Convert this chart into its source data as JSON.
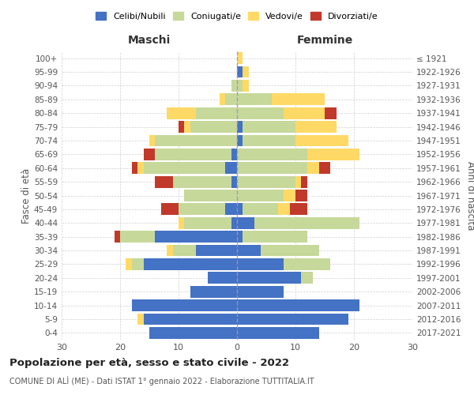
{
  "age_groups": [
    "0-4",
    "5-9",
    "10-14",
    "15-19",
    "20-24",
    "25-29",
    "30-34",
    "35-39",
    "40-44",
    "45-49",
    "50-54",
    "55-59",
    "60-64",
    "65-69",
    "70-74",
    "75-79",
    "80-84",
    "85-89",
    "90-94",
    "95-99",
    "100+"
  ],
  "birth_years": [
    "2017-2021",
    "2012-2016",
    "2007-2011",
    "2002-2006",
    "1997-2001",
    "1992-1996",
    "1987-1991",
    "1982-1986",
    "1977-1981",
    "1972-1976",
    "1967-1971",
    "1962-1966",
    "1957-1961",
    "1952-1956",
    "1947-1951",
    "1942-1946",
    "1937-1941",
    "1932-1936",
    "1927-1931",
    "1922-1926",
    "≤ 1921"
  ],
  "male": {
    "celibi": [
      15,
      16,
      18,
      8,
      5,
      16,
      7,
      14,
      1,
      2,
      0,
      1,
      2,
      1,
      0,
      0,
      0,
      0,
      0,
      0,
      0
    ],
    "coniugati": [
      0,
      0,
      0,
      0,
      0,
      2,
      4,
      6,
      8,
      8,
      9,
      10,
      14,
      13,
      14,
      8,
      7,
      2,
      1,
      0,
      0
    ],
    "vedovi": [
      0,
      1,
      0,
      0,
      0,
      1,
      1,
      0,
      1,
      0,
      0,
      0,
      1,
      0,
      1,
      1,
      5,
      1,
      0,
      0,
      0
    ],
    "divorziati": [
      0,
      0,
      0,
      0,
      0,
      0,
      0,
      1,
      0,
      3,
      0,
      3,
      1,
      2,
      0,
      1,
      0,
      0,
      0,
      0,
      0
    ]
  },
  "female": {
    "nubili": [
      14,
      19,
      21,
      8,
      11,
      8,
      4,
      1,
      3,
      1,
      0,
      0,
      0,
      0,
      1,
      1,
      0,
      0,
      0,
      1,
      0
    ],
    "coniugate": [
      0,
      0,
      0,
      0,
      2,
      8,
      10,
      11,
      18,
      6,
      8,
      10,
      12,
      12,
      9,
      9,
      8,
      6,
      1,
      0,
      0
    ],
    "vedove": [
      0,
      0,
      0,
      0,
      0,
      0,
      0,
      0,
      0,
      2,
      2,
      1,
      2,
      9,
      9,
      7,
      7,
      9,
      1,
      1,
      1
    ],
    "divorziate": [
      0,
      0,
      0,
      0,
      0,
      0,
      0,
      0,
      0,
      3,
      2,
      1,
      2,
      0,
      0,
      0,
      2,
      0,
      0,
      0,
      0
    ]
  },
  "colors": {
    "celibi": "#4472c4",
    "coniugati": "#c6d89a",
    "vedovi": "#ffd966",
    "divorziati": "#c0392b"
  },
  "title": "Popolazione per età, sesso e stato civile - 2022",
  "subtitle": "COMUNE DI ALÌ (ME) - Dati ISTAT 1° gennaio 2022 - Elaborazione TUTTITALIA.IT",
  "xlabel_left": "Maschi",
  "xlabel_right": "Femmine",
  "ylabel_left": "Fasce di età",
  "ylabel_right": "Anni di nascita",
  "xlim": 30,
  "bg_color": "#ffffff",
  "grid_color": "#cccccc"
}
